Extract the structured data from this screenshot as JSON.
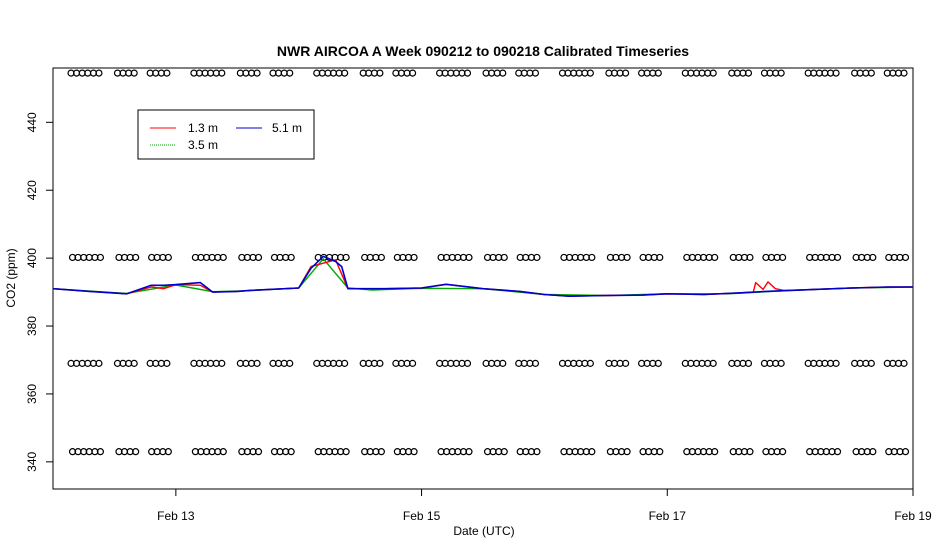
{
  "chart_data": {
    "type": "line",
    "title": "NWR AIRCOA A  Week 090212 to 090218  Calibrated Timeseries",
    "xlabel": "Date (UTC)",
    "ylabel": "CO2 (ppm)",
    "xlim": [
      12.0,
      19.0
    ],
    "ylim": [
      332,
      456
    ],
    "x_ticks": [
      {
        "value": 13,
        "label": "Feb 13"
      },
      {
        "value": 15,
        "label": "Feb 15"
      },
      {
        "value": 17,
        "label": "Feb 17"
      },
      {
        "value": 19,
        "label": "Feb 19"
      }
    ],
    "y_ticks": [
      340,
      360,
      380,
      400,
      420,
      440
    ],
    "legend": {
      "placement": "top-left",
      "entries": [
        {
          "label": "1.3 m",
          "color": "#ff0000"
        },
        {
          "label": "5.1 m",
          "color": "#0000cc"
        },
        {
          "label": "3.5 m",
          "color": "#00aa00"
        }
      ]
    },
    "series": [
      {
        "name": "1.3 m",
        "color": "#ff0000",
        "x": [
          12.0,
          12.3,
          12.6,
          12.8,
          12.9,
          13.0,
          13.2,
          13.3,
          13.5,
          13.6,
          14.0,
          14.1,
          14.3,
          14.4,
          14.7,
          15.0,
          15.2,
          15.5,
          15.8,
          16.0,
          16.2,
          16.5,
          16.8,
          17.0,
          17.3,
          17.6,
          17.7,
          17.72,
          17.78,
          17.82,
          17.88,
          17.95,
          18.2,
          18.5,
          18.8,
          19.0
        ],
        "y": [
          391.0,
          390.2,
          389.5,
          391.5,
          391.0,
          392.2,
          392.0,
          390.0,
          390.2,
          390.5,
          391.2,
          397.5,
          399.5,
          391.0,
          391.0,
          391.2,
          392.3,
          391.0,
          390.2,
          389.3,
          388.8,
          389.0,
          389.1,
          389.5,
          389.3,
          389.8,
          390.0,
          392.8,
          390.8,
          393.0,
          391.0,
          390.5,
          390.8,
          391.2,
          391.5,
          391.5
        ]
      },
      {
        "name": "5.1 m",
        "color": "#0000cc",
        "x": [
          12.0,
          12.3,
          12.6,
          12.8,
          12.9,
          13.0,
          13.2,
          13.3,
          13.5,
          13.6,
          14.0,
          14.1,
          14.2,
          14.3,
          14.35,
          14.4,
          14.7,
          15.0,
          15.2,
          15.5,
          15.8,
          16.0,
          16.2,
          16.5,
          16.8,
          17.0,
          17.3,
          17.6,
          17.8,
          18.0,
          18.2,
          18.5,
          18.8,
          19.0
        ],
        "y": [
          391.0,
          390.2,
          389.5,
          392.0,
          392.0,
          392.2,
          392.8,
          390.0,
          390.2,
          390.5,
          391.2,
          397.0,
          400.5,
          399.0,
          397.5,
          391.0,
          391.0,
          391.2,
          392.3,
          391.0,
          390.2,
          389.3,
          388.8,
          389.0,
          389.1,
          389.5,
          389.3,
          389.8,
          390.2,
          390.5,
          390.8,
          391.2,
          391.5,
          391.5
        ]
      },
      {
        "name": "3.5 m",
        "color": "#00aa00",
        "x": [
          12.0,
          12.6,
          13.0,
          13.3,
          13.6,
          14.0,
          14.2,
          14.4,
          14.6,
          15.0,
          15.5,
          16.0,
          16.5,
          17.0,
          17.5,
          18.0,
          18.5,
          19.0
        ],
        "y": [
          391.0,
          389.6,
          392.1,
          390.1,
          390.4,
          391.2,
          399.8,
          391.2,
          390.6,
          391.1,
          391.0,
          389.3,
          389.0,
          389.5,
          389.5,
          390.5,
          391.2,
          391.5
        ]
      }
    ],
    "marker_rows": [
      {
        "name": "markers at 454.5",
        "y": 454.5
      },
      {
        "name": "markers at 400.2",
        "y": 400.2
      },
      {
        "name": "markers at 369.0",
        "y": 369.0
      },
      {
        "name": "markers at 343.0",
        "y": 343.0
      }
    ],
    "grid": false
  }
}
